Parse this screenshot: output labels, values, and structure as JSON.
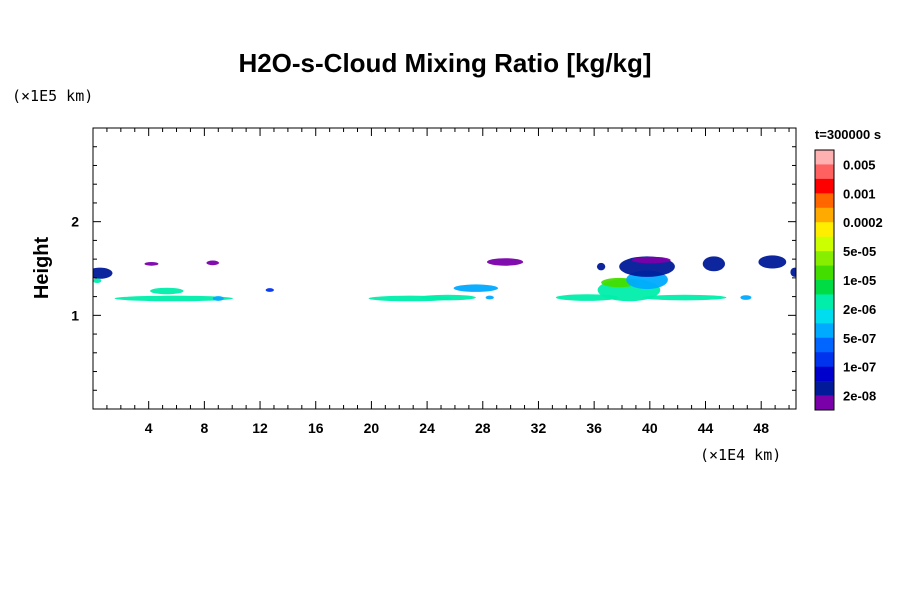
{
  "title": "H2O-s-Cloud Mixing Ratio [kg/kg]",
  "y_unit": "(×1E5 km)",
  "x_unit": "(×1E4 km)",
  "time_label": "t=300000 s",
  "chart_data": {
    "type": "heatmap",
    "title": "H2O-s-Cloud Mixing Ratio [kg/kg]",
    "xlabel": "",
    "ylabel": "Height",
    "xlim": [
      0,
      50.5
    ],
    "ylim": [
      0,
      3
    ],
    "x_unit": "(×1E4 km)",
    "y_unit": "(×1E5 km)",
    "x_ticks": [
      4,
      8,
      12,
      16,
      20,
      24,
      28,
      32,
      36,
      40,
      44,
      48
    ],
    "y_ticks": [
      1,
      2
    ],
    "grid": false,
    "colorbar": {
      "title": "t=300000 s",
      "labels": [
        "0.005",
        "0.001",
        "0.0002",
        "5e-05",
        "1e-05",
        "2e-06",
        "5e-07",
        "1e-07",
        "2e-08"
      ],
      "colors": [
        "#ffb0b0",
        "#ff6060",
        "#ff0000",
        "#ff6600",
        "#ffaa00",
        "#ffee00",
        "#ccff00",
        "#88ee00",
        "#44dd00",
        "#00dd44",
        "#00eeaa",
        "#00ddee",
        "#00aaff",
        "#0066ff",
        "#0033ee",
        "#0000cc",
        "#001a99",
        "#7a00aa"
      ]
    },
    "features": [
      {
        "x": 0.5,
        "y": 1.45,
        "w": 1.8,
        "h": 0.12,
        "level": "1e-07"
      },
      {
        "x": 0.3,
        "y": 1.37,
        "w": 0.6,
        "h": 0.05,
        "level": "1e-05"
      },
      {
        "x": 4.2,
        "y": 1.55,
        "w": 1.0,
        "h": 0.04,
        "level": "2e-08"
      },
      {
        "x": 8.6,
        "y": 1.56,
        "w": 0.9,
        "h": 0.05,
        "level": "2e-08"
      },
      {
        "x": 5.3,
        "y": 1.26,
        "w": 2.4,
        "h": 0.07,
        "level": "1e-05"
      },
      {
        "x": 5.8,
        "y": 1.18,
        "w": 8.5,
        "h": 0.06,
        "level": "1e-05"
      },
      {
        "x": 9.0,
        "y": 1.18,
        "w": 0.8,
        "h": 0.05,
        "level": "2e-06"
      },
      {
        "x": 12.7,
        "y": 1.27,
        "w": 0.6,
        "h": 0.04,
        "level": "5e-07"
      },
      {
        "x": 22.8,
        "y": 1.18,
        "w": 6.0,
        "h": 0.06,
        "level": "1e-05"
      },
      {
        "x": 25.5,
        "y": 1.19,
        "w": 4.0,
        "h": 0.06,
        "level": "1e-05"
      },
      {
        "x": 27.5,
        "y": 1.29,
        "w": 3.2,
        "h": 0.08,
        "level": "2e-06"
      },
      {
        "x": 28.5,
        "y": 1.19,
        "w": 0.6,
        "h": 0.04,
        "level": "2e-06"
      },
      {
        "x": 29.6,
        "y": 1.57,
        "w": 2.6,
        "h": 0.08,
        "level": "2e-08"
      },
      {
        "x": 35.5,
        "y": 1.19,
        "w": 4.5,
        "h": 0.07,
        "level": "1e-05"
      },
      {
        "x": 38.5,
        "y": 1.27,
        "w": 4.5,
        "h": 0.24,
        "level": "1e-05"
      },
      {
        "x": 37.8,
        "y": 1.35,
        "w": 2.6,
        "h": 0.1,
        "level": "5e-05"
      },
      {
        "x": 39.8,
        "y": 1.38,
        "w": 3.0,
        "h": 0.2,
        "level": "2e-06"
      },
      {
        "x": 39.8,
        "y": 1.52,
        "w": 4.0,
        "h": 0.22,
        "level": "1e-07"
      },
      {
        "x": 40.1,
        "y": 1.59,
        "w": 2.8,
        "h": 0.07,
        "level": "2e-08"
      },
      {
        "x": 36.5,
        "y": 1.52,
        "w": 0.6,
        "h": 0.08,
        "level": "1e-07"
      },
      {
        "x": 42.5,
        "y": 1.19,
        "w": 6.0,
        "h": 0.06,
        "level": "1e-05"
      },
      {
        "x": 46.9,
        "y": 1.19,
        "w": 0.8,
        "h": 0.05,
        "level": "2e-06"
      },
      {
        "x": 44.6,
        "y": 1.55,
        "w": 1.6,
        "h": 0.16,
        "level": "1e-07"
      },
      {
        "x": 48.8,
        "y": 1.57,
        "w": 2.0,
        "h": 0.14,
        "level": "1e-07"
      },
      {
        "x": 50.4,
        "y": 1.46,
        "w": 0.6,
        "h": 0.1,
        "level": "1e-07"
      }
    ]
  }
}
